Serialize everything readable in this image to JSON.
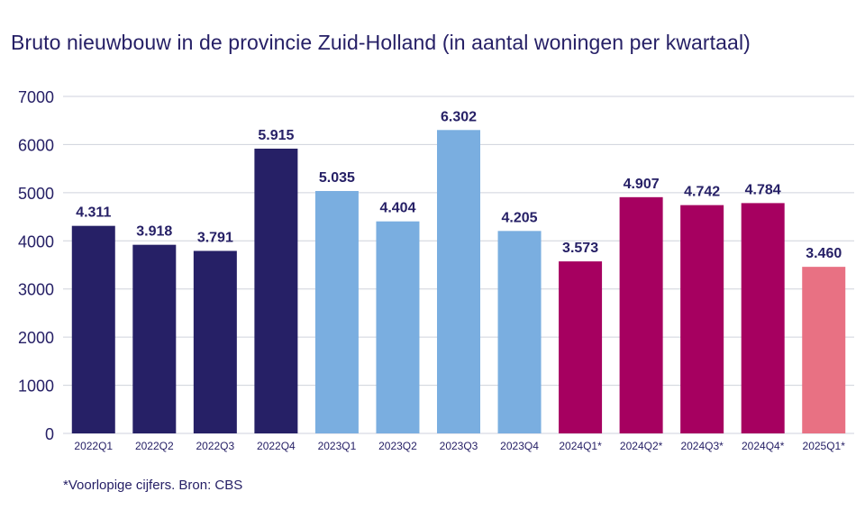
{
  "chart_data": {
    "type": "bar",
    "title": "Bruto nieuwbouw in de provincie Zuid-Holland (in aantal woningen per kwartaal)",
    "categories": [
      "2022Q1",
      "2022Q2",
      "2022Q3",
      "2022Q4",
      "2023Q1",
      "2023Q2",
      "2023Q3",
      "2023Q4",
      "2024Q1*",
      "2024Q2*",
      "2024Q3*",
      "2024Q4*",
      "2025Q1*"
    ],
    "values": [
      4311,
      3918,
      3791,
      5915,
      5035,
      4404,
      6302,
      4205,
      3573,
      4907,
      4742,
      4784,
      3460
    ],
    "value_labels": [
      "4.311",
      "3.918",
      "3.791",
      "5.915",
      "5.035",
      "4.404",
      "6.302",
      "4.205",
      "3.573",
      "4.907",
      "4.742",
      "4.784",
      "3.460"
    ],
    "colors": [
      "#262066",
      "#262066",
      "#262066",
      "#262066",
      "#7aaee0",
      "#7aaee0",
      "#7aaee0",
      "#7aaee0",
      "#a60060",
      "#a60060",
      "#a60060",
      "#a60060",
      "#e87183"
    ],
    "ylim": [
      0,
      7000
    ],
    "yticks": [
      "0",
      "1000",
      "2000",
      "3000",
      "4000",
      "5000",
      "6000",
      "7000"
    ],
    "grid": true,
    "legend": "none"
  },
  "footnote": "*Voorlopige cijfers. Bron: CBS"
}
